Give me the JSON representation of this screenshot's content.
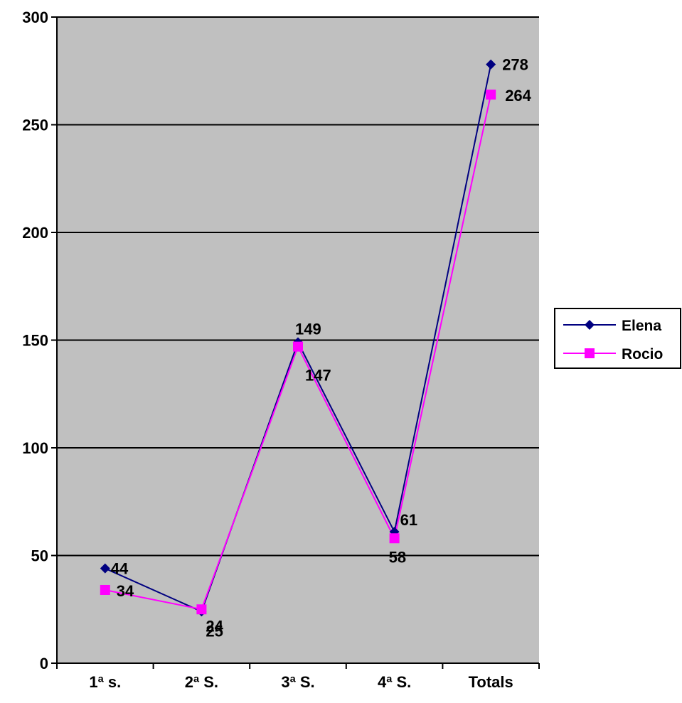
{
  "chart_data": {
    "type": "line",
    "categories": [
      "1ª s.",
      "2ª S.",
      "3ª S.",
      "4ª S.",
      "Totals"
    ],
    "ylim": [
      0,
      300
    ],
    "yticks": [
      0,
      50,
      100,
      150,
      200,
      250,
      300
    ],
    "grid": true,
    "legend_position": "right",
    "plot_background": "#c0c0c0",
    "series": [
      {
        "name": "Elena",
        "values": [
          44,
          24,
          149,
          61,
          278
        ],
        "labels": [
          "44",
          "24",
          "149",
          "61",
          "278"
        ],
        "color": "#000080",
        "marker": "diamond"
      },
      {
        "name": "Rocio",
        "values": [
          34,
          25,
          147,
          58,
          264
        ],
        "labels": [
          "34",
          "25",
          "147",
          "58",
          "264"
        ],
        "color": "#ff00ff",
        "marker": "square"
      }
    ]
  }
}
